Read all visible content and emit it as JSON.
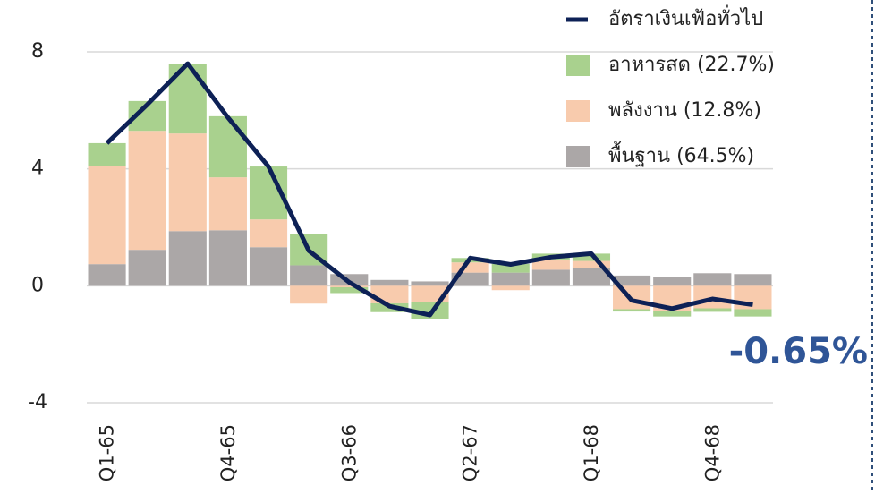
{
  "chart_data": {
    "type": "stacked_bar_line",
    "categories": [
      "Q1-65",
      null,
      null,
      "Q4-65",
      null,
      null,
      "Q3-66",
      null,
      null,
      "Q2-67",
      null,
      null,
      "Q1-68",
      null,
      null,
      "Q4-68",
      null
    ],
    "series": [
      {
        "name": "พื้นฐาน (64.5%)",
        "color": "#aba7a7",
        "kind": "bar",
        "values": [
          0.74,
          1.23,
          1.87,
          1.9,
          1.32,
          0.7,
          0.4,
          0.2,
          0.15,
          0.45,
          0.45,
          0.55,
          0.6,
          0.35,
          0.3,
          0.43,
          0.4
        ]
      },
      {
        "name": "พลังงาน (12.8%)",
        "color": "#f8cbad",
        "kind": "bar",
        "values": [
          3.36,
          4.07,
          3.34,
          1.81,
          0.95,
          -0.61,
          -0.05,
          -0.6,
          -0.55,
          0.35,
          -0.15,
          0.35,
          0.25,
          -0.8,
          -0.85,
          -0.77,
          -0.8
        ]
      },
      {
        "name": "อาหารสด (22.7%)",
        "color": "#a9d18e",
        "kind": "bar",
        "values": [
          0.78,
          1.02,
          2.39,
          2.09,
          1.81,
          1.08,
          -0.2,
          -0.3,
          -0.6,
          0.15,
          0.3,
          0.2,
          0.25,
          -0.08,
          -0.2,
          -0.12,
          -0.25
        ]
      },
      {
        "name": "อัตราเงินเฟ้อทั่วไป",
        "color": "#0d2156",
        "kind": "line",
        "values": [
          4.88,
          6.2,
          7.6,
          5.75,
          4.08,
          1.2,
          0.12,
          -0.7,
          -1.0,
          0.95,
          0.73,
          0.98,
          1.1,
          -0.5,
          -0.78,
          -0.45,
          -0.65
        ]
      }
    ],
    "annotation": "-0.65%",
    "ylim": [
      -4,
      8
    ],
    "yticks": [
      -4,
      0,
      4,
      8
    ],
    "grid": true
  }
}
